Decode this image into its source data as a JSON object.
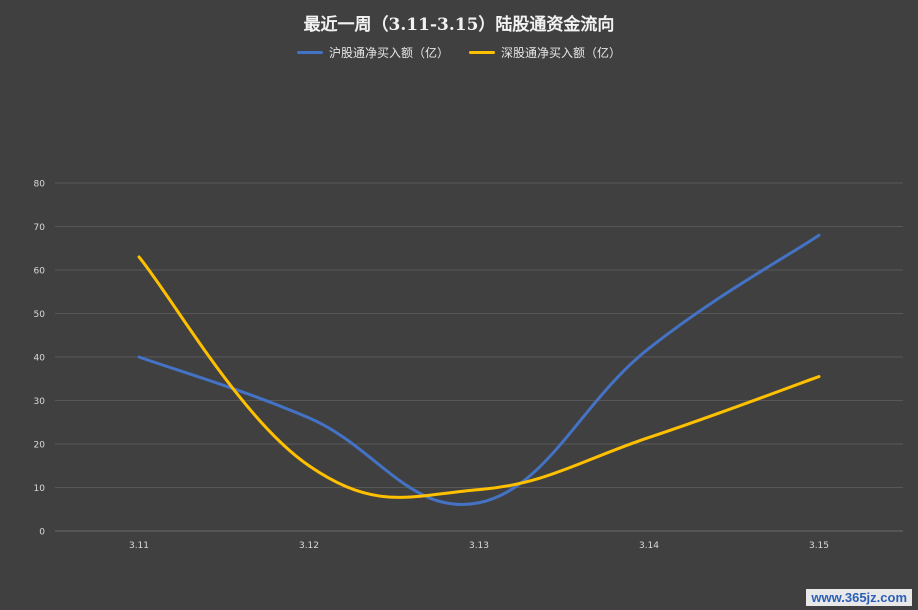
{
  "chart_data": {
    "type": "line",
    "title": "最近一周（3.11-3.15）陆股通资金流向",
    "categories": [
      "3.11",
      "3.12",
      "3.13",
      "3.14",
      "3.15"
    ],
    "series": [
      {
        "name": "沪股通净买入额（亿）",
        "values": [
          40,
          26,
          6.5,
          42,
          68
        ],
        "color": "#4472c4"
      },
      {
        "name": "深股通净买入额（亿）",
        "values": [
          63,
          15,
          9.5,
          21.5,
          35.5
        ],
        "color": "#ffc000"
      }
    ],
    "ylim": [
      0,
      80
    ],
    "yticks": [
      0,
      10,
      20,
      30,
      40,
      50,
      60,
      70,
      80
    ],
    "grid": true,
    "legend": "top-center",
    "smooth": true
  },
  "watermark": "www.365jz.com"
}
